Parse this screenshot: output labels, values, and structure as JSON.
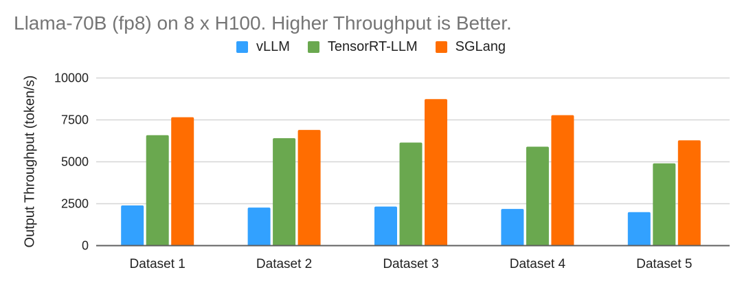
{
  "title": "Llama-70B (fp8) on 8 x H100. Higher Throughput is Better.",
  "legend": [
    {
      "label": "vLLM",
      "color": "#32a1ff"
    },
    {
      "label": "TensorRT-LLM",
      "color": "#6aa84f"
    },
    {
      "label": "SGLang",
      "color": "#ff6d01"
    }
  ],
  "chart_data": {
    "type": "bar",
    "title": "Llama-70B (fp8) on 8 x H100. Higher Throughput is Better.",
    "xlabel": "",
    "ylabel": "Output Throughput (token/s)",
    "categories": [
      "Dataset 1",
      "Dataset 2",
      "Dataset 3",
      "Dataset 4",
      "Dataset 5"
    ],
    "series": [
      {
        "name": "vLLM",
        "color": "#32a1ff",
        "values": [
          2400,
          2270,
          2330,
          2190,
          2000
        ]
      },
      {
        "name": "TensorRT-LLM",
        "color": "#6aa84f",
        "values": [
          6590,
          6410,
          6150,
          5900,
          4910
        ]
      },
      {
        "name": "SGLang",
        "color": "#ff6d01",
        "values": [
          7660,
          6900,
          8740,
          7780,
          6280
        ]
      }
    ],
    "ylim": [
      0,
      10000
    ],
    "yticks": [
      "0",
      "2500",
      "5000",
      "7500",
      "10000"
    ],
    "grid": true,
    "legend_position": "top"
  }
}
